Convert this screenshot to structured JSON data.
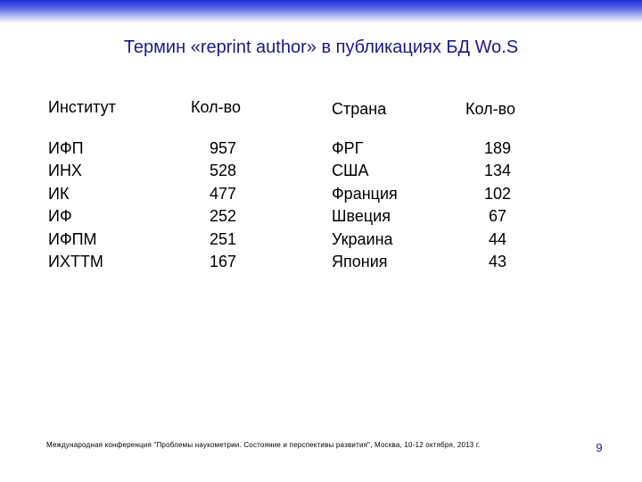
{
  "title": "Термин «reprint author» в публикациях БД Wo.S",
  "institutes": {
    "header_name": "Институт",
    "header_count": "Кол-во",
    "rows": [
      {
        "name": "ИФП",
        "count": "957"
      },
      {
        "name": "ИНХ",
        "count": "528"
      },
      {
        "name": "ИК",
        "count": "477"
      },
      {
        "name": "ИФ",
        "count": "252"
      },
      {
        "name": "ИФПМ",
        "count": "251"
      },
      {
        "name": "ИХТТМ",
        "count": "167"
      }
    ]
  },
  "countries": {
    "header_name": "Страна",
    "header_count": "Кол-во",
    "rows": [
      {
        "name": "ФРГ",
        "count": "189"
      },
      {
        "name": "США",
        "count": "134"
      },
      {
        "name": "Франция",
        "count": "102"
      },
      {
        "name": "Швеция",
        "count": "67"
      },
      {
        "name": "Украина",
        "count": "44"
      },
      {
        "name": "Япония",
        "count": "43"
      }
    ]
  },
  "footer": "Международная конференция \"Проблемы наукометрии. Состояние и перспективы развития\", Москва, 10-12 октября, 2013 г.",
  "page_number": "9",
  "colors": {
    "title": "#1a1a8c",
    "top_band": "#1f2fd6"
  }
}
